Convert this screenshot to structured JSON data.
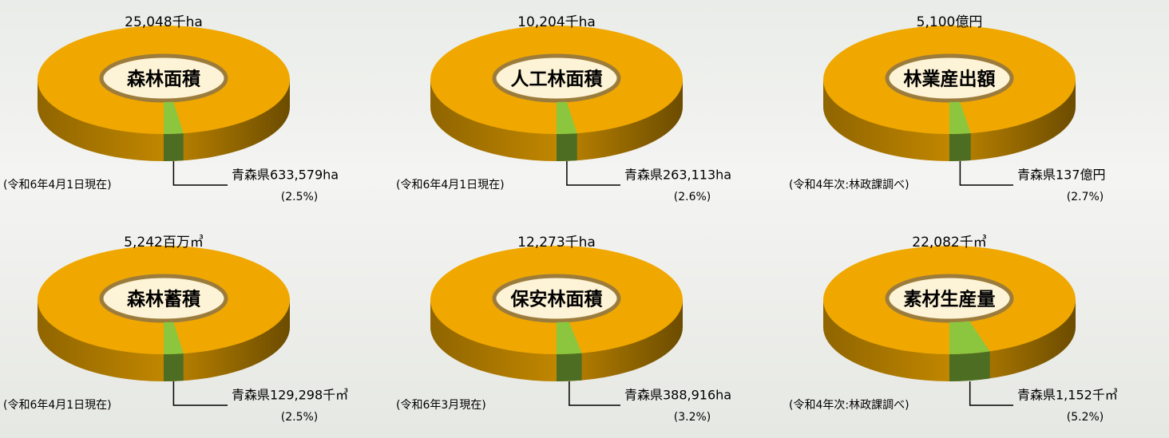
{
  "chart_data": [
    {
      "type": "donut",
      "total": "25,048千ha",
      "title": "森林面積",
      "categories": [
        "青森県633,579ha"
      ],
      "values": [
        2.5
      ],
      "value_labels": [
        "(2.5%)"
      ],
      "note": "(令和6年4月1日現在)",
      "color": "#8cc63f",
      "ring_color": "#f0a800"
    },
    {
      "type": "donut",
      "total": "10,204千ha",
      "title": "人工林面積",
      "categories": [
        "青森県263,113ha"
      ],
      "values": [
        2.6
      ],
      "value_labels": [
        "(2.6%)"
      ],
      "note": "(令和6年4月1日現在)",
      "color": "#8cc63f",
      "ring_color": "#f0a800"
    },
    {
      "type": "donut",
      "total": "5,100億円",
      "title": "林業産出額",
      "categories": [
        "青森県137億円"
      ],
      "values": [
        2.7
      ],
      "value_labels": [
        "(2.7%)"
      ],
      "note": "(令和4年次:林政課調べ)",
      "color": "#8cc63f",
      "ring_color": "#f0a800"
    },
    {
      "type": "donut",
      "total": "5,242百万㎥",
      "title": "森林蓄積",
      "categories": [
        "青森県129,298千㎥"
      ],
      "values": [
        2.5
      ],
      "value_labels": [
        "(2.5%)"
      ],
      "note": "(令和6年4月1日現在)",
      "color": "#8cc63f",
      "ring_color": "#f0a800"
    },
    {
      "type": "donut",
      "total": "12,273千ha",
      "title": "保安林面積",
      "categories": [
        "青森県388,916ha"
      ],
      "values": [
        3.2
      ],
      "value_labels": [
        "(3.2%)"
      ],
      "note": "(令和6年3月現在)",
      "color": "#8cc63f",
      "ring_color": "#f0a800"
    },
    {
      "type": "donut",
      "total": "22,082千㎥",
      "title": "素材生産量",
      "categories": [
        "青森県1,152千㎥"
      ],
      "values": [
        5.2
      ],
      "value_labels": [
        "(5.2%)"
      ],
      "note": "(令和4年次:林政課調べ)",
      "color": "#8cc63f",
      "ring_color": "#f0a800"
    }
  ]
}
